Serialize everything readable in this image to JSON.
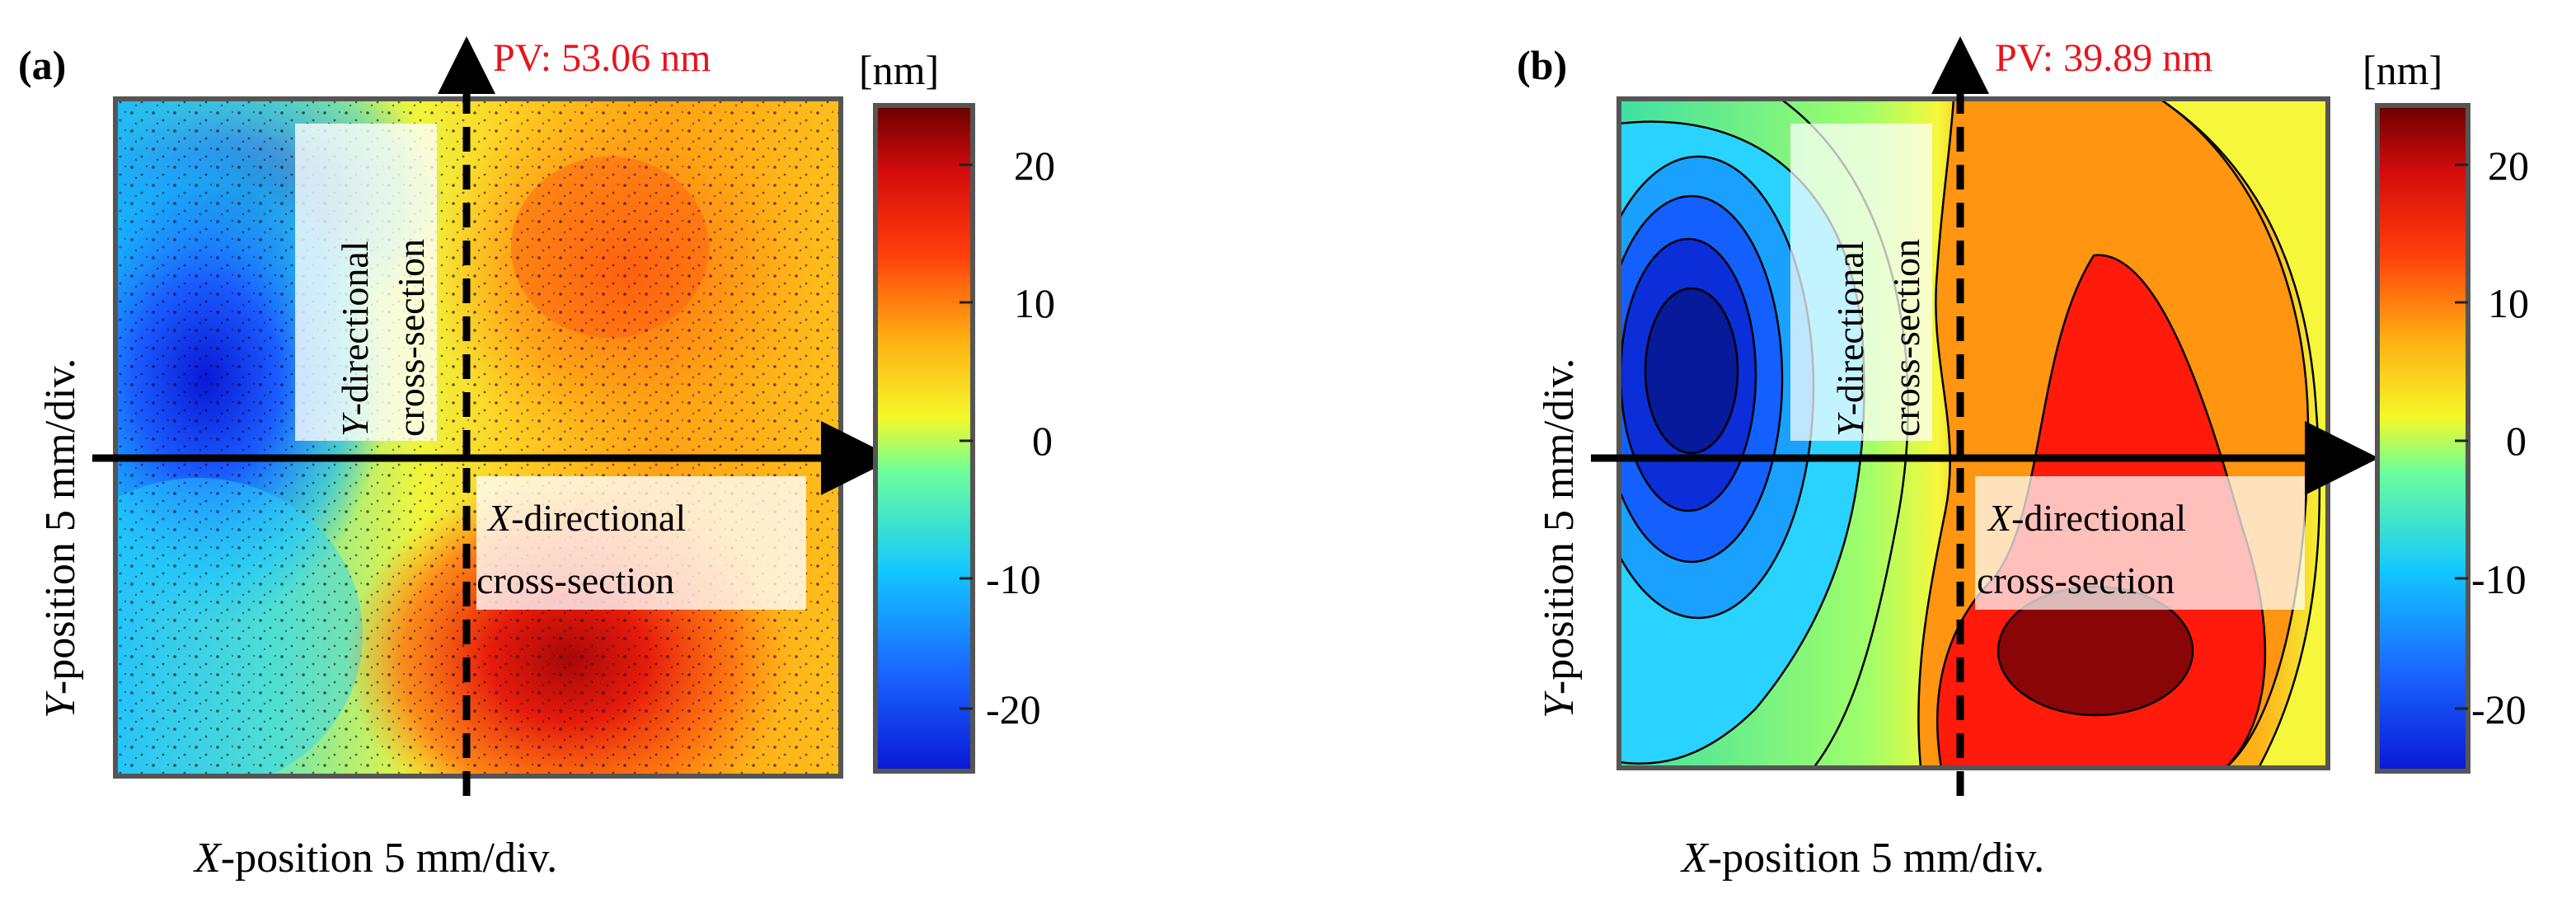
{
  "figure": {
    "panels": [
      {
        "id": "a",
        "label": "(a)",
        "pv_text": "PV: 53.06 nm",
        "colorbar_unit": "[nm]",
        "colorbar_ticks": [
          "20",
          "10",
          "0",
          "-10",
          "-20"
        ],
        "y_annot_line1_italic": "Y",
        "y_annot_line1_rest": "-directional",
        "y_annot_line2": "cross-section",
        "x_annot_line1_italic": "X",
        "x_annot_line1_rest": "-directional",
        "x_annot_line2": "cross-section",
        "xlabel_italic": "X",
        "xlabel_rest": "-position 5 mm/div.",
        "ylabel_italic": "Y",
        "ylabel_rest": "-position 5 mm/div."
      },
      {
        "id": "b",
        "label": "(b)",
        "pv_text": "PV: 39.89 nm",
        "colorbar_unit": "[nm]",
        "colorbar_ticks": [
          "20",
          "10",
          "0",
          "-10",
          "-20"
        ],
        "y_annot_line1_italic": "Y",
        "y_annot_line1_rest": "-directional",
        "y_annot_line2": "cross-section",
        "x_annot_line1_italic": "X",
        "x_annot_line1_rest": "-directional",
        "x_annot_line2": "cross-section",
        "xlabel_italic": "X",
        "xlabel_rest": "-position 5 mm/div.",
        "ylabel_italic": "Y",
        "ylabel_rest": "-position 5 mm/div."
      }
    ]
  },
  "colors": {
    "pv_text": "#e8141e",
    "arrow": "#000000"
  },
  "chart_data": [
    {
      "type": "heatmap",
      "title": "PV: 53.06 nm",
      "xlabel": "X-position 5 mm/div.",
      "ylabel": "Y-position 5 mm/div.",
      "colorbar_label": "[nm]",
      "colorbar_range": [
        -25,
        25
      ],
      "colorbar_ticks": [
        -20,
        -10,
        0,
        10,
        20
      ],
      "pv_nm": 53.06,
      "regions": [
        {
          "name": "low-left",
          "center_xy_data": [
            -1.5,
            0.5
          ],
          "value_nm": -22
        },
        {
          "name": "mid-left-upper",
          "center_xy_data": [
            -1.2,
            1.3
          ],
          "value_nm": -12
        },
        {
          "name": "high-lower-right",
          "center_xy_data": [
            0.7,
            -1.1
          ],
          "value_nm": 22
        },
        {
          "name": "high-upper-right",
          "center_xy_data": [
            0.9,
            0.9
          ],
          "value_nm": 14
        }
      ]
    },
    {
      "type": "heatmap",
      "title": "PV: 39.89 nm",
      "xlabel": "X-position 5 mm/div.",
      "ylabel": "Y-position 5 mm/div.",
      "colorbar_label": "[nm]",
      "colorbar_range": [
        -25,
        25
      ],
      "colorbar_ticks": [
        -20,
        -10,
        0,
        10,
        20
      ],
      "pv_nm": 39.89,
      "regions": [
        {
          "name": "low-left",
          "center_xy_data": [
            -1.6,
            0.2
          ],
          "value_nm": -24
        },
        {
          "name": "high-lower-right",
          "center_xy_data": [
            0.8,
            -1.0
          ],
          "value_nm": 21
        },
        {
          "name": "mid-right",
          "center_xy_data": [
            0.7,
            0.3
          ],
          "value_nm": 12
        }
      ]
    }
  ]
}
